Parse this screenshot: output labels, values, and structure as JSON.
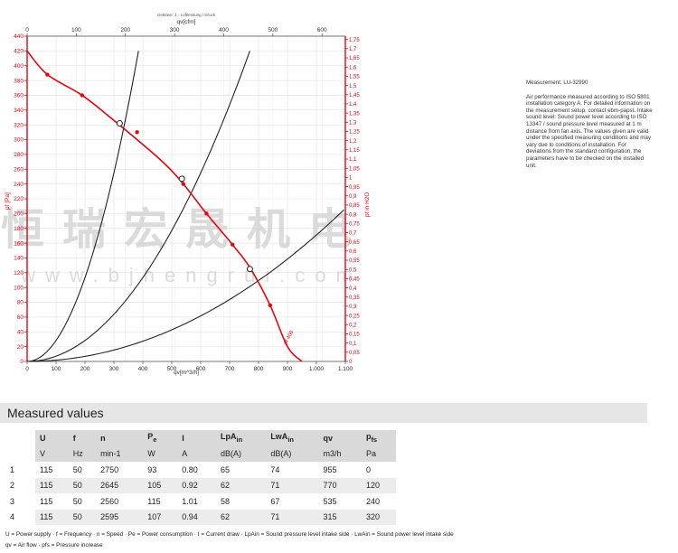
{
  "chart_data": {
    "type": "line",
    "title": "",
    "top_axis": {
      "label": "qv[cfm]",
      "ticks": [
        0,
        100,
        200,
        300,
        400,
        500,
        600
      ],
      "range": [
        0,
        647.4
      ]
    },
    "bottom_axis": {
      "label": "qv[m^3/h]",
      "ticks": [
        "0",
        "100",
        "200",
        "300",
        "400",
        "500",
        "600",
        "700",
        "800",
        "900",
        "1.000",
        "1.100"
      ],
      "range": [
        0,
        1100
      ]
    },
    "left_axis": {
      "label": "pf [Pa]",
      "ticks": [
        0,
        20,
        40,
        60,
        80,
        100,
        120,
        140,
        160,
        180,
        200,
        220,
        240,
        260,
        280,
        300,
        320,
        340,
        360,
        380,
        400,
        420,
        440
      ],
      "range": [
        0,
        440
      ]
    },
    "right_axis": {
      "label": "pf in H2O",
      "ticks": [
        "0",
        "0,05",
        "0,1",
        "0,15",
        "0,2",
        "0,25",
        "0,3",
        "0,35",
        "0,4",
        "0,45",
        "0,5",
        "0,55",
        "0,6",
        "0,65",
        "0,7",
        "0,75",
        "0,8",
        "0,85",
        "0,9",
        "0,95",
        "1",
        "1,05",
        "1,1",
        "1,15",
        "1,2",
        "1,25",
        "1,3",
        "1,35",
        "1,4",
        "1,45",
        "1,5",
        "1,55",
        "1,6",
        "1,65",
        "1,7",
        "1,75"
      ],
      "range": [
        0,
        1.768
      ]
    },
    "fan_curve": {
      "color": "#e30613",
      "x": [
        0,
        70,
        190,
        300,
        460,
        540,
        620,
        710,
        770,
        840,
        900,
        950
      ],
      "y": [
        420,
        388,
        360,
        326,
        273,
        240,
        200,
        158,
        127,
        76,
        20,
        0
      ],
      "markers": [
        [
          70,
          388
        ],
        [
          190,
          360
        ],
        [
          380,
          310
        ],
        [
          540,
          240
        ],
        [
          620,
          200
        ],
        [
          710,
          158
        ],
        [
          840,
          76
        ]
      ],
      "end_label": "pf 400"
    },
    "system_curves": {
      "color": "#222222",
      "x_ends": [
        385,
        770,
        1095
      ],
      "y_end": [
        420,
        420,
        205
      ]
    },
    "operating_points": [
      {
        "x": 320,
        "y": 322
      },
      {
        "x": 535,
        "y": 247
      },
      {
        "x": 770,
        "y": 125
      }
    ],
    "axis_color": "#e30613",
    "grid": true
  },
  "header_small_text": "Gebläse: 1 - Luftleistung / Druck",
  "watermark": {
    "chinese": "恒瑞宏晟机电",
    "url": "www.bjhengrui.com"
  },
  "notes": {
    "title": "Measurement: LU-32990",
    "body": "Air performance measured according to ISO 5801 installation category A. For detailed information on the measurement setup, contact ebm-papst. Intake sound level: Sound power level according to ISO 13347 / sound pressure level measured at 1 m distance from fan axis. The values given are valid under the specified measuring conditions and may vary due to conditions of installation. For deviations from the standard configuration, the parameters have to be checked on the installed unit."
  },
  "measured": {
    "title": "Measured values",
    "headers": [
      "",
      "U",
      "f",
      "n",
      "Pe",
      "I",
      "LpAin",
      "LwAin",
      "qv",
      "pfs"
    ],
    "units": [
      "",
      "V",
      "Hz",
      "min-1",
      "W",
      "A",
      "dB(A)",
      "dB(A)",
      "m3/h",
      "Pa"
    ],
    "rows": [
      [
        "1",
        "115",
        "50",
        "2750",
        "93",
        "0.80",
        "65",
        "74",
        "955",
        "0"
      ],
      [
        "2",
        "115",
        "50",
        "2645",
        "105",
        "0.92",
        "62",
        "71",
        "770",
        "120"
      ],
      [
        "3",
        "115",
        "50",
        "2560",
        "115",
        "1.01",
        "58",
        "67",
        "535",
        "240"
      ],
      [
        "4",
        "115",
        "50",
        "2595",
        "107",
        "0.94",
        "62",
        "71",
        "315",
        "320"
      ]
    ],
    "legend_line1": "U = Power supply · f = Frequency · n = Speed · Pe = Power consumption · I = Current draw · LpAin = Sound pressure level intake side · LwAin = Sound power level intake side",
    "legend_line2": "qv = Air flow · pfs = Pressure increase"
  }
}
